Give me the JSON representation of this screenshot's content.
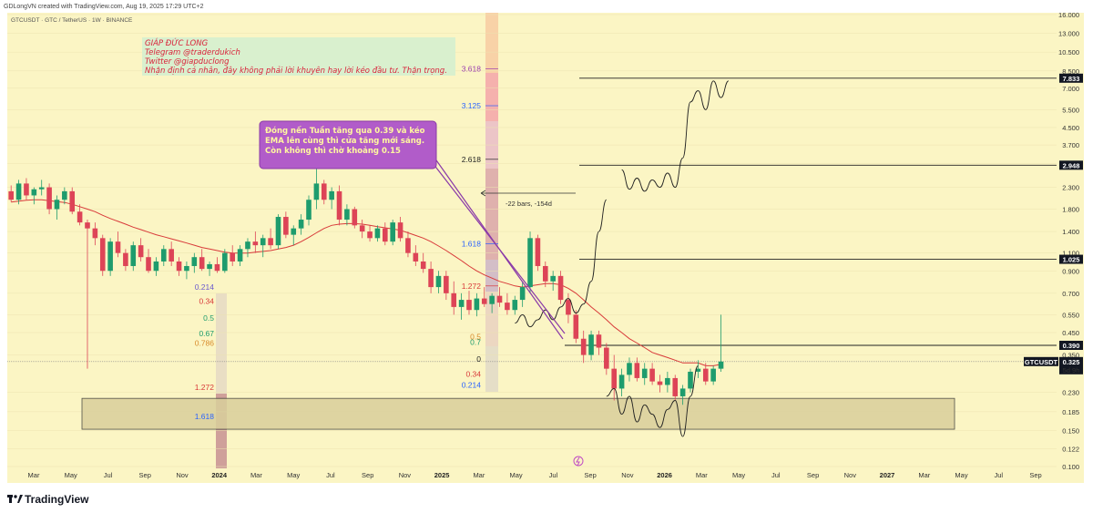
{
  "header": {
    "credit": "GDLongVN created with TradingView.com, Aug 19, 2025 17:29 UTC+2",
    "symbol_line": "GTCUSDT · GTC / TetherUS · 1W · BINANCE"
  },
  "brand": {
    "logo_text": "TradingView",
    "logo_icon": "tradingview-logo-icon"
  },
  "note_box": {
    "lines": [
      "GIÁP ĐỨC LONG",
      "Telegram @traderdukich",
      "Twitter @giapduclong",
      "Nhận định cá nhân, đây không phải lời khuyên hay lời kéo đầu tư. Thận trọng."
    ],
    "color": "#d9233b",
    "background": "#d7efcf"
  },
  "callout": {
    "lines": [
      "Đóng nến Tuần tăng qua 0.39 và kéo",
      "EMA lên cùng thì cửa tăng mới sáng.",
      "Còn không thì chờ khoảng 0.15"
    ],
    "background": "#b15cc9"
  },
  "measure_label": "-22 bars, -154d",
  "icons": {
    "event_icon": "lightning-icon"
  },
  "colors": {
    "background": "#fbf5c4",
    "up": "#1e9c6d",
    "down": "#dd4457",
    "ema": "#d83a3a",
    "zone": "#d9cf9c"
  },
  "chart_data": {
    "type": "candlestick",
    "title": "GTCUSDT · GTC / TetherUS · 1W · BINANCE",
    "y_scale": "log",
    "ylim": [
      0.1,
      16.0
    ],
    "y_ticks": [
      "16.000",
      "13.000",
      "10.500",
      "8.500",
      "7.000",
      "5.500",
      "4.500",
      "3.700",
      "3.000",
      "2.300",
      "1.800",
      "1.400",
      "1.100",
      "0.900",
      "0.700",
      "0.550",
      "0.450",
      "0.350",
      "0.230",
      "0.185",
      "0.150",
      "0.122",
      "0.100"
    ],
    "x_ticks": [
      {
        "label": "Mar",
        "bold": false
      },
      {
        "label": "May",
        "bold": false
      },
      {
        "label": "Jul",
        "bold": false
      },
      {
        "label": "Sep",
        "bold": false
      },
      {
        "label": "Nov",
        "bold": false
      },
      {
        "label": "2024",
        "bold": true
      },
      {
        "label": "Mar",
        "bold": false
      },
      {
        "label": "May",
        "bold": false
      },
      {
        "label": "Jul",
        "bold": false
      },
      {
        "label": "Sep",
        "bold": false
      },
      {
        "label": "Nov",
        "bold": false
      },
      {
        "label": "2025",
        "bold": true
      },
      {
        "label": "Mar",
        "bold": false
      },
      {
        "label": "May",
        "bold": false
      },
      {
        "label": "Jul",
        "bold": false
      },
      {
        "label": "Sep",
        "bold": false
      },
      {
        "label": "Nov",
        "bold": false
      },
      {
        "label": "2026",
        "bold": true
      },
      {
        "label": "Mar",
        "bold": false
      },
      {
        "label": "May",
        "bold": false
      },
      {
        "label": "Jul",
        "bold": false
      },
      {
        "label": "Sep",
        "bold": false
      },
      {
        "label": "Nov",
        "bold": false
      },
      {
        "label": "2027",
        "bold": true
      },
      {
        "label": "Mar",
        "bold": false
      },
      {
        "label": "May",
        "bold": false
      },
      {
        "label": "Jul",
        "bold": false
      },
      {
        "label": "Sep",
        "bold": false
      }
    ],
    "price_levels": [
      {
        "label": "7.833",
        "value": 7.833
      },
      {
        "label": "2.948",
        "value": 2.948
      },
      {
        "label": "1.025",
        "value": 1.025
      },
      {
        "label": "0.390",
        "value": 0.39
      }
    ],
    "current_price": {
      "symbol": "GTCUSDT",
      "label": "0.325",
      "value": 0.325,
      "countdown": "5d 9h"
    },
    "demand_zone": {
      "top": 0.215,
      "bottom": 0.152
    },
    "fib_main": [
      {
        "label": "3.618",
        "value": 8.7,
        "color": "#9b3fb0"
      },
      {
        "label": "3.125",
        "value": 5.75,
        "color": "#2962ff"
      },
      {
        "label": "2.618",
        "value": 3.15,
        "color": "#222222"
      },
      {
        "label": "1.618",
        "value": 1.22,
        "color": "#2962ff"
      },
      {
        "label": "1.272",
        "value": 0.76,
        "color": "#d83a3a"
      }
    ],
    "fib_small_right": [
      {
        "label": "0.5",
        "value": 0.43,
        "color": "#d88a2a"
      },
      {
        "label": "0.7",
        "value": 0.405,
        "color": "#1e9c6d"
      },
      {
        "label": "0",
        "value": 0.335,
        "color": "#222222"
      },
      {
        "label": "0.34",
        "value": 0.283,
        "color": "#d83a3a"
      },
      {
        "label": "0.214",
        "value": 0.25,
        "color": "#2962ff"
      }
    ],
    "fib_left": [
      {
        "label": "0.214",
        "value": 0.75,
        "color": "#6a5acd"
      },
      {
        "label": "0.34",
        "value": 0.64,
        "color": "#d83a3a"
      },
      {
        "label": "0.5",
        "value": 0.53,
        "color": "#1e9c6d"
      },
      {
        "label": "0.67",
        "value": 0.445,
        "color": "#1e9c6d"
      },
      {
        "label": "0.786",
        "value": 0.4,
        "color": "#d88a2a"
      },
      {
        "label": "1.272",
        "value": 0.243,
        "color": "#d83a3a"
      },
      {
        "label": "1.618",
        "value": 0.176,
        "color": "#2962ff"
      }
    ],
    "candles": [
      [
        2.2,
        2.35,
        1.95,
        2.0
      ],
      [
        2.0,
        2.5,
        1.9,
        2.4
      ],
      [
        2.4,
        2.55,
        2.0,
        2.1
      ],
      [
        2.1,
        2.3,
        1.9,
        2.25
      ],
      [
        2.25,
        2.5,
        2.1,
        2.3
      ],
      [
        2.3,
        2.4,
        1.7,
        1.8
      ],
      [
        1.8,
        2.1,
        1.6,
        2.0
      ],
      [
        2.0,
        2.3,
        1.9,
        2.2
      ],
      [
        2.2,
        2.3,
        1.7,
        1.75
      ],
      [
        1.75,
        1.9,
        1.5,
        1.55
      ],
      [
        1.55,
        1.6,
        0.3,
        1.45
      ],
      [
        1.45,
        1.55,
        1.2,
        1.3
      ],
      [
        1.3,
        1.35,
        0.85,
        0.9
      ],
      [
        0.9,
        1.3,
        0.85,
        1.25
      ],
      [
        1.25,
        1.4,
        1.05,
        1.1
      ],
      [
        1.1,
        1.15,
        0.9,
        0.95
      ],
      [
        0.95,
        1.25,
        0.9,
        1.2
      ],
      [
        1.2,
        1.3,
        1.0,
        1.05
      ],
      [
        1.05,
        1.15,
        0.88,
        0.9
      ],
      [
        0.9,
        1.05,
        0.85,
        1.0
      ],
      [
        1.0,
        1.2,
        0.95,
        1.15
      ],
      [
        1.15,
        1.25,
        0.95,
        1.0
      ],
      [
        1.0,
        1.05,
        0.85,
        0.9
      ],
      [
        0.9,
        1.0,
        0.82,
        0.95
      ],
      [
        0.95,
        1.1,
        0.88,
        1.05
      ],
      [
        1.05,
        1.15,
        0.9,
        0.92
      ],
      [
        0.92,
        1.0,
        0.85,
        0.97
      ],
      [
        0.97,
        1.05,
        0.88,
        0.9
      ],
      [
        0.9,
        1.15,
        0.88,
        1.1
      ],
      [
        1.1,
        1.2,
        0.95,
        1.0
      ],
      [
        1.0,
        1.2,
        0.95,
        1.15
      ],
      [
        1.15,
        1.3,
        1.05,
        1.25
      ],
      [
        1.25,
        1.4,
        1.1,
        1.2
      ],
      [
        1.2,
        1.35,
        1.05,
        1.3
      ],
      [
        1.3,
        1.45,
        1.15,
        1.2
      ],
      [
        1.2,
        1.7,
        1.15,
        1.65
      ],
      [
        1.65,
        1.75,
        1.3,
        1.35
      ],
      [
        1.35,
        1.5,
        1.2,
        1.45
      ],
      [
        1.45,
        1.7,
        1.35,
        1.6
      ],
      [
        1.6,
        2.1,
        1.5,
        2.0
      ],
      [
        2.0,
        2.9,
        1.8,
        2.4
      ],
      [
        2.4,
        2.5,
        1.9,
        2.0
      ],
      [
        2.0,
        2.3,
        1.8,
        2.2
      ],
      [
        2.2,
        2.35,
        1.5,
        1.6
      ],
      [
        1.6,
        1.9,
        1.5,
        1.8
      ],
      [
        1.8,
        1.85,
        1.45,
        1.5
      ],
      [
        1.5,
        1.6,
        1.3,
        1.4
      ],
      [
        1.4,
        1.5,
        1.25,
        1.3
      ],
      [
        1.3,
        1.5,
        1.25,
        1.45
      ],
      [
        1.45,
        1.55,
        1.2,
        1.25
      ],
      [
        1.25,
        1.6,
        1.2,
        1.55
      ],
      [
        1.55,
        1.65,
        1.25,
        1.3
      ],
      [
        1.3,
        1.4,
        1.05,
        1.1
      ],
      [
        1.1,
        1.2,
        0.95,
        1.0
      ],
      [
        1.0,
        1.1,
        0.88,
        0.92
      ],
      [
        0.92,
        1.0,
        0.7,
        0.75
      ],
      [
        0.75,
        0.9,
        0.7,
        0.85
      ],
      [
        0.85,
        0.9,
        0.65,
        0.7
      ],
      [
        0.7,
        0.8,
        0.55,
        0.6
      ],
      [
        0.6,
        0.7,
        0.52,
        0.65
      ],
      [
        0.65,
        0.72,
        0.55,
        0.58
      ],
      [
        0.58,
        0.7,
        0.54,
        0.66
      ],
      [
        0.66,
        0.75,
        0.6,
        0.62
      ],
      [
        0.62,
        0.7,
        0.56,
        0.68
      ],
      [
        0.68,
        0.75,
        0.6,
        0.63
      ],
      [
        0.63,
        0.7,
        0.55,
        0.58
      ],
      [
        0.58,
        0.68,
        0.55,
        0.65
      ],
      [
        0.65,
        0.8,
        0.6,
        0.75
      ],
      [
        0.75,
        1.4,
        0.7,
        1.3
      ],
      [
        1.3,
        1.35,
        0.9,
        0.95
      ],
      [
        0.95,
        1.0,
        0.75,
        0.8
      ],
      [
        0.8,
        0.9,
        0.72,
        0.85
      ],
      [
        0.85,
        0.9,
        0.62,
        0.65
      ],
      [
        0.65,
        0.7,
        0.5,
        0.55
      ],
      [
        0.55,
        0.58,
        0.4,
        0.42
      ],
      [
        0.42,
        0.46,
        0.32,
        0.35
      ],
      [
        0.35,
        0.46,
        0.33,
        0.44
      ],
      [
        0.44,
        0.46,
        0.35,
        0.38
      ],
      [
        0.38,
        0.4,
        0.28,
        0.3
      ],
      [
        0.3,
        0.35,
        0.21,
        0.24
      ],
      [
        0.24,
        0.3,
        0.22,
        0.28
      ],
      [
        0.28,
        0.34,
        0.26,
        0.32
      ],
      [
        0.32,
        0.34,
        0.26,
        0.27
      ],
      [
        0.27,
        0.32,
        0.25,
        0.3
      ],
      [
        0.3,
        0.32,
        0.25,
        0.26
      ],
      [
        0.26,
        0.28,
        0.23,
        0.25
      ],
      [
        0.25,
        0.29,
        0.23,
        0.27
      ],
      [
        0.27,
        0.28,
        0.21,
        0.22
      ],
      [
        0.22,
        0.25,
        0.2,
        0.24
      ],
      [
        0.24,
        0.3,
        0.23,
        0.29
      ],
      [
        0.29,
        0.33,
        0.27,
        0.3
      ],
      [
        0.3,
        0.32,
        0.25,
        0.26
      ],
      [
        0.26,
        0.31,
        0.25,
        0.3
      ],
      [
        0.3,
        0.55,
        0.29,
        0.325
      ]
    ],
    "ema": [
      1.95,
      1.97,
      1.99,
      2.0,
      2.0,
      1.98,
      1.96,
      1.94,
      1.9,
      1.85,
      1.8,
      1.75,
      1.68,
      1.62,
      1.57,
      1.52,
      1.47,
      1.43,
      1.39,
      1.35,
      1.32,
      1.29,
      1.26,
      1.23,
      1.2,
      1.17,
      1.15,
      1.13,
      1.11,
      1.1,
      1.1,
      1.1,
      1.11,
      1.12,
      1.13,
      1.15,
      1.17,
      1.2,
      1.25,
      1.31,
      1.38,
      1.45,
      1.5,
      1.52,
      1.53,
      1.53,
      1.52,
      1.5,
      1.48,
      1.46,
      1.44,
      1.42,
      1.38,
      1.34,
      1.3,
      1.25,
      1.19,
      1.13,
      1.07,
      1.01,
      0.95,
      0.9,
      0.86,
      0.83,
      0.8,
      0.78,
      0.76,
      0.75,
      0.76,
      0.77,
      0.78,
      0.78,
      0.77,
      0.74,
      0.7,
      0.65,
      0.6,
      0.56,
      0.52,
      0.48,
      0.45,
      0.42,
      0.4,
      0.38,
      0.36,
      0.35,
      0.34,
      0.33,
      0.32,
      0.32,
      0.32,
      0.31,
      0.31,
      0.315
    ],
    "projections": [
      {
        "name": "path-to-1.025",
        "points": [
          [
            66,
            0.5
          ],
          [
            67,
            0.55
          ],
          [
            68,
            0.48
          ],
          [
            69,
            0.52
          ],
          [
            70,
            0.58
          ],
          [
            71,
            0.52
          ],
          [
            72,
            0.6
          ],
          [
            73,
            0.66
          ],
          [
            74,
            0.56
          ],
          [
            75,
            0.62
          ],
          [
            76,
            0.8
          ],
          [
            77,
            1.4
          ],
          [
            78,
            2.0
          ]
        ]
      },
      {
        "name": "path-to-2.948",
        "points": [
          [
            80,
            2.8
          ],
          [
            81,
            2.25
          ],
          [
            82,
            2.55
          ],
          [
            83,
            2.2
          ],
          [
            84,
            2.5
          ],
          [
            85,
            2.3
          ],
          [
            86,
            2.7
          ],
          [
            87,
            2.3
          ],
          [
            88,
            3.2
          ],
          [
            89,
            6.0
          ],
          [
            90,
            6.8
          ],
          [
            91,
            5.5
          ],
          [
            92,
            7.6
          ],
          [
            93,
            6.3
          ],
          [
            94,
            7.6
          ]
        ]
      },
      {
        "name": "path-to-0.15",
        "points": [
          [
            78,
            0.22
          ],
          [
            79,
            0.24
          ],
          [
            80,
            0.18
          ],
          [
            81,
            0.22
          ],
          [
            82,
            0.165
          ],
          [
            83,
            0.2
          ],
          [
            84,
            0.18
          ],
          [
            85,
            0.155
          ],
          [
            86,
            0.19
          ],
          [
            87,
            0.21
          ],
          [
            88,
            0.14
          ],
          [
            89,
            0.22
          ],
          [
            90,
            0.31
          ]
        ]
      }
    ]
  }
}
